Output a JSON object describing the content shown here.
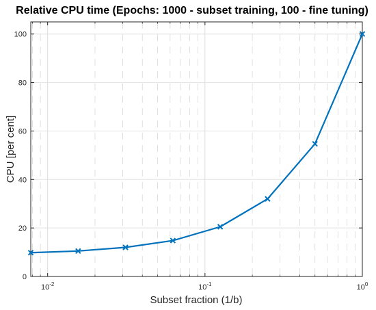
{
  "chart_data": {
    "type": "line",
    "title": "Relative CPU time (Epochs: 1000 - subset training, 100 - fine tuning)",
    "xlabel": "Subset fraction (1/b)",
    "ylabel": "CPU [per cent]",
    "xscale": "log",
    "xlim": [
      0.0078125,
      1.0
    ],
    "ylim": [
      0,
      105
    ],
    "grid": true,
    "x_ticks": [
      {
        "base": "10",
        "exp": "-2",
        "value": 0.01
      },
      {
        "base": "10",
        "exp": "-1",
        "value": 0.1
      },
      {
        "base": "10",
        "exp": "0",
        "value": 1
      }
    ],
    "y_ticks": [
      {
        "label": "0",
        "value": 0
      },
      {
        "label": "20",
        "value": 20
      },
      {
        "label": "40",
        "value": 40
      },
      {
        "label": "60",
        "value": 60
      },
      {
        "label": "80",
        "value": 80
      },
      {
        "label": "100",
        "value": 100
      }
    ],
    "series": [
      {
        "color": "#0072BD",
        "marker": "x",
        "x": [
          0.0078125,
          0.015625,
          0.03125,
          0.0625,
          0.125,
          0.25,
          0.5,
          1.0
        ],
        "y": [
          9.8,
          10.5,
          12.0,
          14.8,
          20.5,
          32.0,
          54.7,
          100.0
        ]
      }
    ]
  }
}
